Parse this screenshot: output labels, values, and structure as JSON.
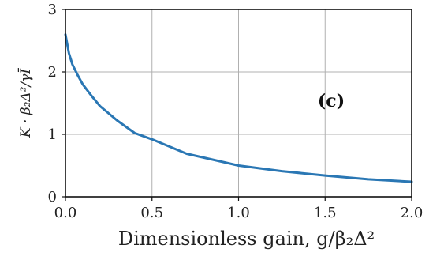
{
  "chart_data": {
    "type": "line",
    "title": "",
    "xlabel": "Dimensionless gain, g/β₂Δ²",
    "ylabel": "K · β₂Δ²/γĪ",
    "panel_label": "(c)",
    "xlim": [
      0.0,
      2.0
    ],
    "ylim": [
      0,
      3
    ],
    "x_ticks": [
      0.0,
      0.5,
      1.0,
      1.5,
      2.0
    ],
    "x_tick_labels": [
      "0.0",
      "0.5",
      "1.0",
      "1.5",
      "2.0"
    ],
    "y_ticks": [
      0,
      1,
      2,
      3
    ],
    "y_tick_labels": [
      "0",
      "1",
      "2",
      "3"
    ],
    "grid": true,
    "series": [
      {
        "color": "#2a77b4",
        "x": [
          0.0,
          0.02,
          0.04,
          0.07,
          0.1,
          0.15,
          0.2,
          0.3,
          0.4,
          0.5,
          0.7,
          1.0,
          1.25,
          1.5,
          1.75,
          2.0
        ],
        "y": [
          2.6,
          2.3,
          2.12,
          1.95,
          1.8,
          1.62,
          1.45,
          1.22,
          1.02,
          0.92,
          0.69,
          0.5,
          0.41,
          0.34,
          0.28,
          0.24
        ]
      }
    ]
  }
}
